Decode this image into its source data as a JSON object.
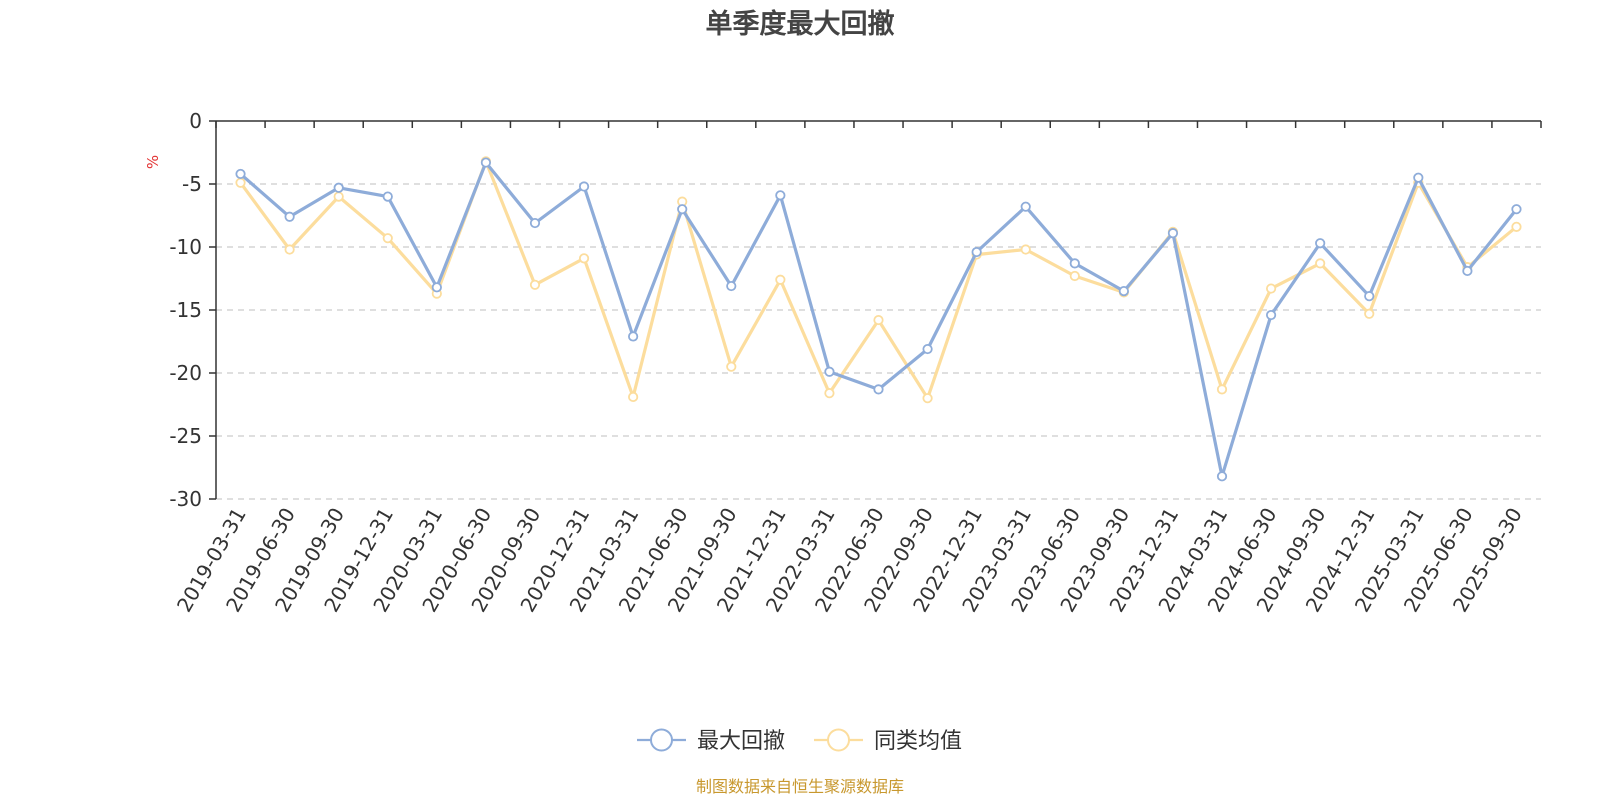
{
  "chart_data": {
    "type": "line",
    "title": "单季度最大回撤",
    "ylabel": "%",
    "ylim": [
      -30,
      0
    ],
    "yticks": [
      0,
      -5,
      -10,
      -15,
      -20,
      -25,
      -30
    ],
    "grid": "horizontal-dashed",
    "legend_position": "bottom",
    "categories": [
      "2019-03-31",
      "2019-06-30",
      "2019-09-30",
      "2019-12-31",
      "2020-03-31",
      "2020-06-30",
      "2020-09-30",
      "2020-12-31",
      "2021-03-31",
      "2021-06-30",
      "2021-09-30",
      "2021-12-31",
      "2022-03-31",
      "2022-06-30",
      "2022-09-30",
      "2022-12-31",
      "2023-03-31",
      "2023-06-30",
      "2023-09-30",
      "2023-12-31",
      "2024-03-31",
      "2024-06-30",
      "2024-09-30",
      "2024-12-31",
      "2025-03-31",
      "2025-06-30",
      "2025-09-30"
    ],
    "series": [
      {
        "name": "最大回撤",
        "color": "#8eacd9",
        "values": [
          -4.2,
          -7.6,
          -5.3,
          -6.0,
          -13.2,
          -3.3,
          -8.1,
          -5.2,
          -17.1,
          -7.0,
          -13.1,
          -5.9,
          -19.9,
          -21.3,
          -18.1,
          -10.4,
          -6.8,
          -11.3,
          -13.5,
          -8.9,
          -28.2,
          -15.4,
          -9.7,
          -13.9,
          -4.5,
          -11.9,
          -7.0
        ]
      },
      {
        "name": "同类均值",
        "color": "#fcdd9d",
        "values": [
          -4.9,
          -10.2,
          -6.0,
          -9.3,
          -13.7,
          -3.2,
          -13.0,
          -10.9,
          -21.9,
          -6.4,
          -19.5,
          -12.6,
          -21.6,
          -15.8,
          -22.0,
          -10.6,
          -10.2,
          -12.3,
          -13.6,
          -8.8,
          -21.3,
          -13.3,
          -11.3,
          -15.3,
          -4.9,
          -11.6,
          -8.4
        ]
      }
    ]
  },
  "footer": {
    "source_text": "制图数据来自恒生聚源数据库",
    "source_color": "#c8982e"
  }
}
